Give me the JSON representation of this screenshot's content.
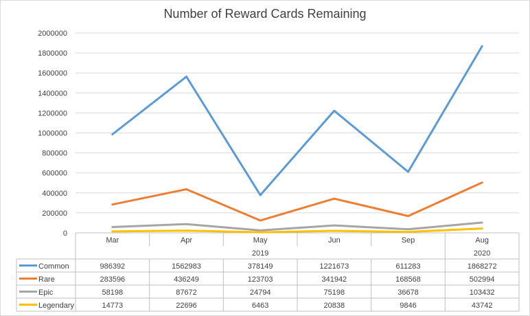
{
  "chart_data": {
    "type": "line",
    "title": "Number of Reward Cards Remaining",
    "xlabel": "",
    "ylabel": "",
    "ylim": [
      0,
      2000000
    ],
    "y_ticks": [
      "0",
      "200000",
      "400000",
      "600000",
      "800000",
      "1000000",
      "1200000",
      "1400000",
      "1600000",
      "1800000",
      "2000000"
    ],
    "categories": [
      "Mar",
      "Apr",
      "May",
      "Jun",
      "Sep",
      "Aug"
    ],
    "year_groups": [
      {
        "label": "2019",
        "span": 5
      },
      {
        "label": "2020",
        "span": 1
      }
    ],
    "grid": true,
    "legend": "data-table",
    "series": [
      {
        "name": "Common",
        "color": "#5b9bd5",
        "values": [
          986392,
          1562983,
          378149,
          1221673,
          611283,
          1868272
        ],
        "labels": [
          "986392",
          "1562983",
          "378149",
          "1221673",
          "611283",
          "1868272"
        ]
      },
      {
        "name": "Rare",
        "color": "#ed7d31",
        "values": [
          283596,
          436249,
          123703,
          341942,
          168568,
          502994
        ],
        "labels": [
          "283596",
          "436249",
          "123703",
          "341942",
          "168568",
          "502994"
        ]
      },
      {
        "name": "Epic",
        "color": "#a5a5a5",
        "values": [
          58198,
          87672,
          24794,
          75198,
          36678,
          103432
        ],
        "labels": [
          "58198",
          "87672",
          "24794",
          "75198",
          "36678",
          "103432"
        ]
      },
      {
        "name": "Legendary",
        "color": "#ffc000",
        "values": [
          14773,
          22696,
          6463,
          20838,
          9846,
          43742
        ],
        "labels": [
          "14773",
          "22696",
          "6463",
          "20838",
          "9846",
          "43742"
        ]
      }
    ]
  }
}
